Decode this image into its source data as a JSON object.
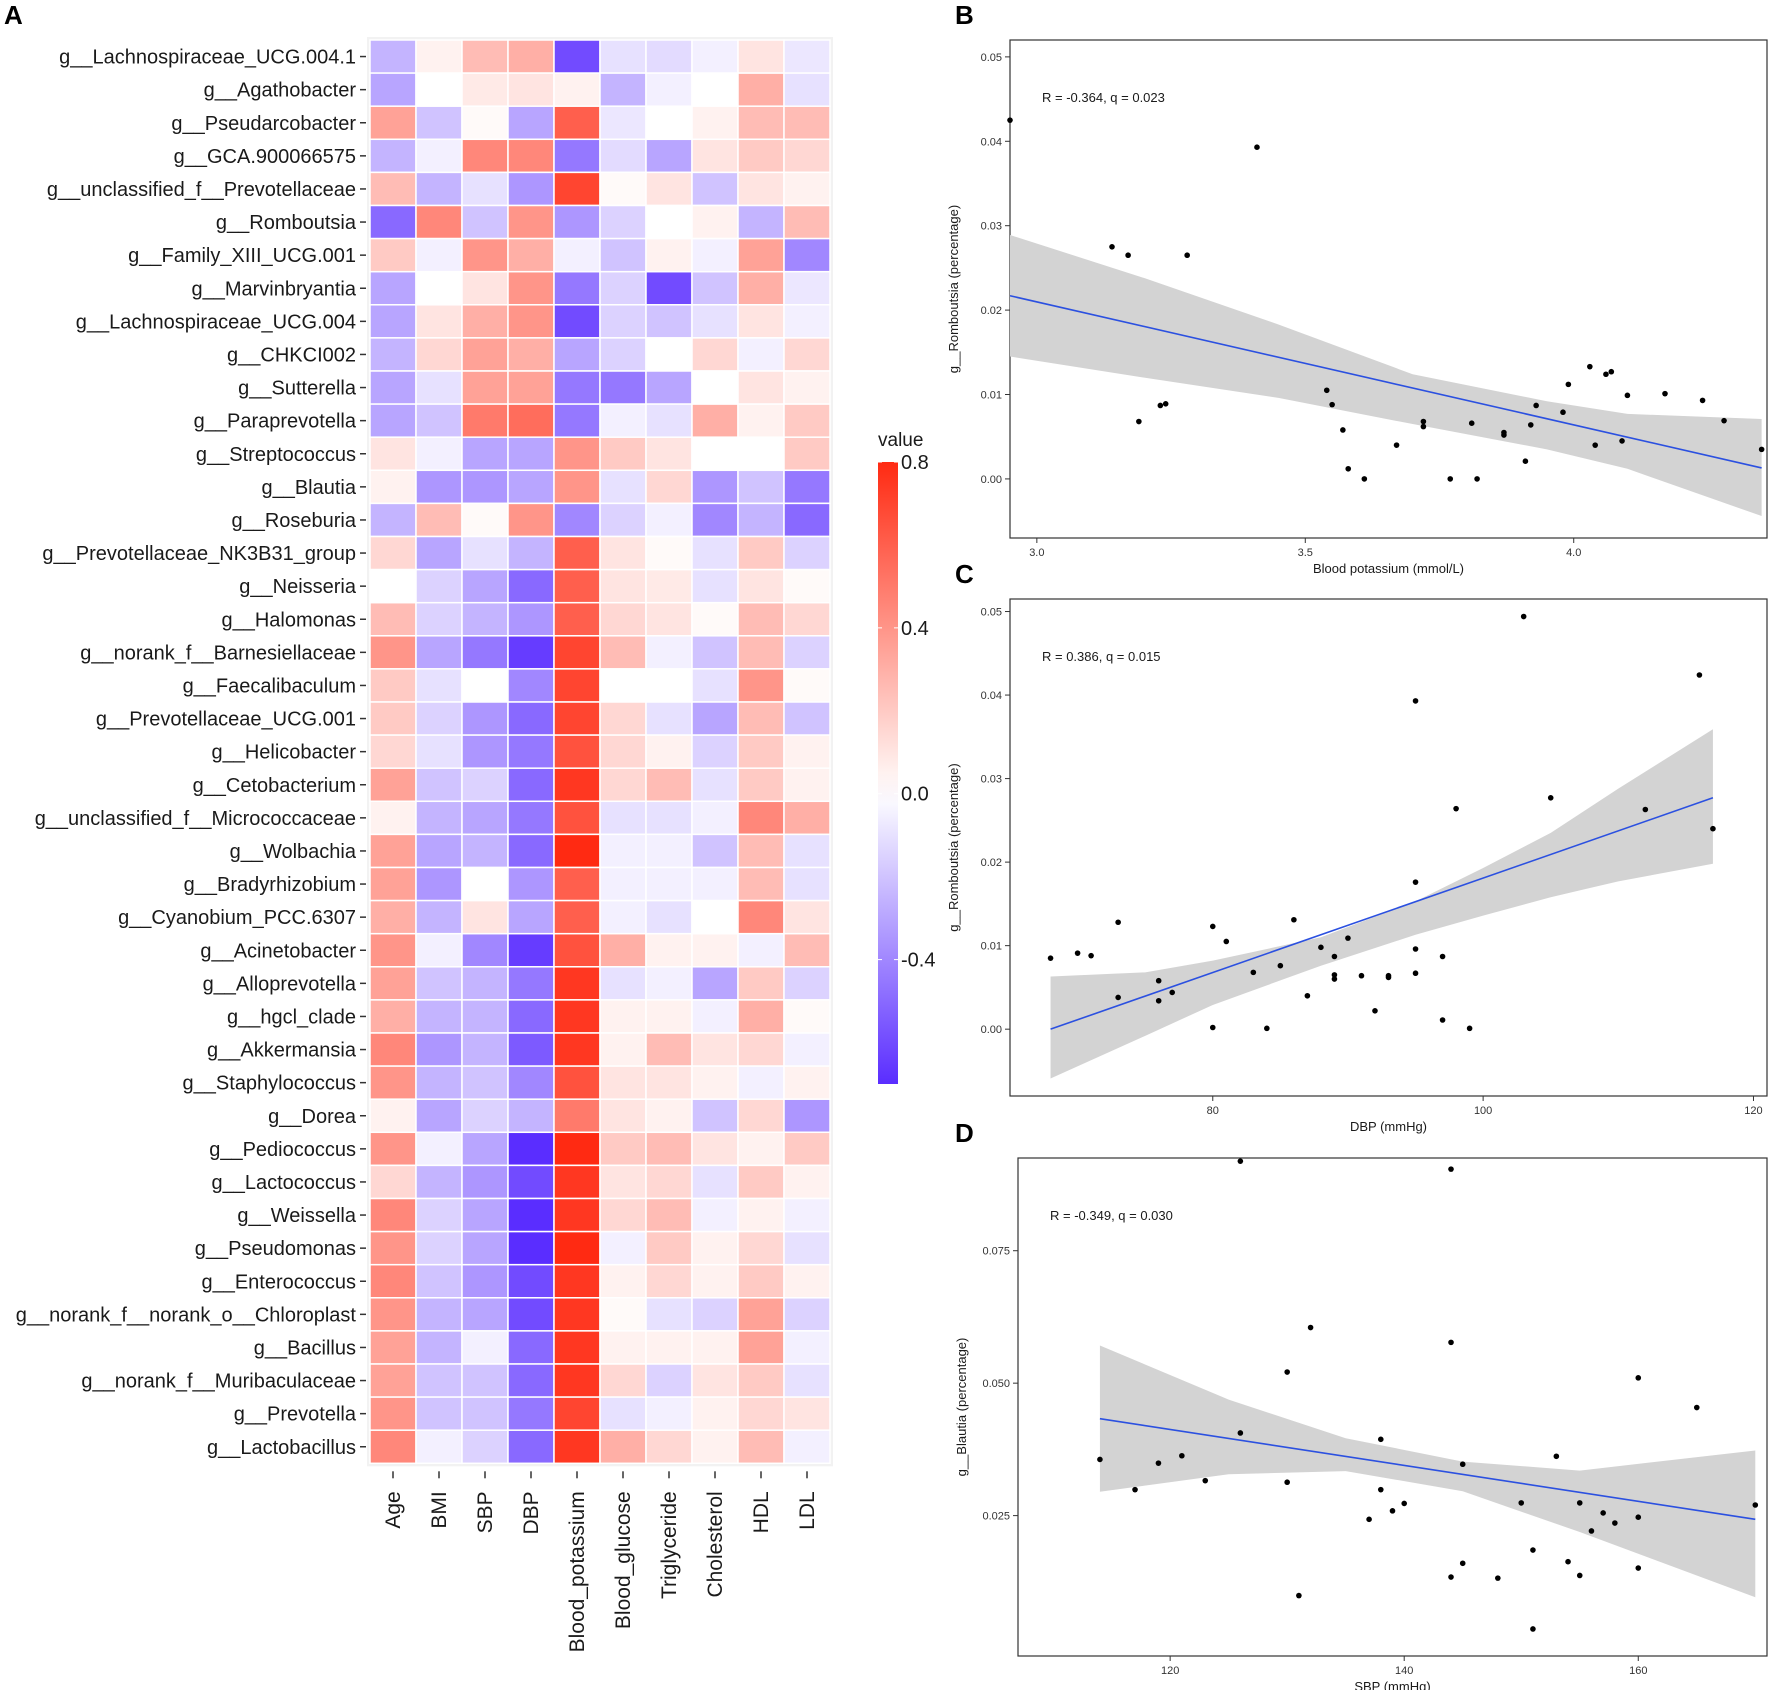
{
  "panels": {
    "A": "A",
    "B": "B",
    "C": "C",
    "D": "D"
  },
  "colors": {
    "neg": "#5a2dff",
    "pos": "#ff2a12",
    "mid": "#ffffff",
    "line": "#2b50e0",
    "band": "#d3d3d3"
  },
  "chart_data": [
    {
      "type": "heatmap",
      "panel": "A",
      "columns": [
        "Age",
        "BMI",
        "SBP",
        "DBP",
        "Blood_potassium",
        "Blood_glucose",
        "Triglyceride",
        "Cholesterol",
        "HDL",
        "LDL"
      ],
      "rows": [
        "g__Lachnospiraceae_UCG.004.1",
        "g__Agathobacter",
        "g__Pseudarcobacter",
        "g__GCA.900066575",
        "g__unclassified_f__Prevotellaceae",
        "g__Romboutsia",
        "g__Family_XIII_UCG.001",
        "g__Marvinbryantia",
        "g__Lachnospiraceae_UCG.004",
        "g__CHKCI002",
        "g__Sutterella",
        "g__Paraprevotella",
        "g__Streptococcus",
        "g__Blautia",
        "g__Roseburia",
        "g__Prevotellaceae_NK3B31_group",
        "g__Neisseria",
        "g__Halomonas",
        "g__norank_f__Barnesiellaceae",
        "g__Faecalibaculum",
        "g__Prevotellaceae_UCG.001",
        "g__Helicobacter",
        "g__Cetobacterium",
        "g__unclassified_f__Micrococcaceae",
        "g__Wolbachia",
        "g__Bradyrhizobium",
        "g__Cyanobium_PCC.6307",
        "g__Acinetobacter",
        "g__Alloprevotella",
        "g__hgcl_clade",
        "g__Akkermansia",
        "g__Staphylococcus",
        "g__Dorea",
        "g__Pediococcus",
        "g__Lactococcus",
        "g__Weissella",
        "g__Pseudomonas",
        "g__Enterococcus",
        "g__norank_f__norank_o__Chloroplast",
        "g__Bacillus",
        "g__norank_f__Muribaculaceae",
        "g__Prevotella",
        "g__Lactobacillus"
      ],
      "values": [
        [
          -0.25,
          0.05,
          0.25,
          0.3,
          -0.6,
          -0.1,
          -0.12,
          -0.05,
          0.1,
          -0.08
        ],
        [
          -0.3,
          0.0,
          0.08,
          0.1,
          0.05,
          -0.25,
          -0.05,
          0.0,
          0.3,
          -0.1
        ],
        [
          0.35,
          -0.2,
          0.02,
          -0.3,
          0.6,
          -0.08,
          0.0,
          0.05,
          0.25,
          0.25
        ],
        [
          -0.25,
          -0.05,
          0.45,
          0.45,
          -0.45,
          -0.12,
          -0.3,
          0.1,
          0.2,
          0.15
        ],
        [
          0.25,
          -0.25,
          -0.1,
          -0.35,
          0.7,
          0.02,
          0.1,
          -0.2,
          0.1,
          0.05
        ],
        [
          -0.5,
          0.45,
          -0.2,
          0.4,
          -0.35,
          -0.15,
          0.0,
          0.05,
          -0.25,
          0.25
        ],
        [
          0.2,
          -0.05,
          0.4,
          0.3,
          -0.05,
          -0.2,
          0.05,
          -0.05,
          0.35,
          -0.4
        ],
        [
          -0.3,
          0.0,
          0.1,
          0.4,
          -0.45,
          -0.15,
          -0.6,
          -0.2,
          0.3,
          -0.08
        ],
        [
          -0.3,
          0.1,
          0.3,
          0.4,
          -0.6,
          -0.15,
          -0.2,
          -0.1,
          0.1,
          -0.05
        ],
        [
          -0.25,
          0.15,
          0.35,
          0.3,
          -0.3,
          -0.15,
          0.0,
          0.15,
          -0.05,
          0.15
        ],
        [
          -0.3,
          -0.1,
          0.35,
          0.35,
          -0.45,
          -0.45,
          -0.3,
          0.0,
          0.1,
          0.05
        ],
        [
          -0.3,
          -0.2,
          0.5,
          0.55,
          -0.45,
          -0.05,
          -0.1,
          0.3,
          0.05,
          0.2
        ],
        [
          0.1,
          -0.05,
          -0.3,
          -0.3,
          0.4,
          0.2,
          0.1,
          0.0,
          0.0,
          0.2
        ],
        [
          0.05,
          -0.35,
          -0.35,
          -0.3,
          0.4,
          -0.1,
          0.15,
          -0.35,
          -0.2,
          -0.45
        ],
        [
          -0.25,
          0.25,
          0.02,
          0.4,
          -0.4,
          -0.15,
          -0.05,
          -0.4,
          -0.25,
          -0.5
        ],
        [
          0.15,
          -0.3,
          -0.1,
          -0.25,
          0.6,
          0.1,
          0.02,
          -0.1,
          0.2,
          -0.15
        ],
        [
          0.0,
          -0.15,
          -0.3,
          -0.5,
          0.6,
          0.1,
          0.08,
          -0.1,
          0.1,
          0.02
        ],
        [
          0.25,
          -0.15,
          -0.25,
          -0.35,
          0.6,
          0.15,
          0.1,
          0.02,
          0.25,
          0.15
        ],
        [
          0.4,
          -0.3,
          -0.45,
          -0.65,
          0.7,
          0.25,
          -0.05,
          -0.2,
          0.25,
          -0.15
        ],
        [
          0.2,
          -0.1,
          0.0,
          -0.4,
          0.7,
          0.0,
          0.0,
          -0.1,
          0.4,
          0.02
        ],
        [
          0.2,
          -0.15,
          -0.35,
          -0.5,
          0.7,
          0.15,
          -0.1,
          -0.3,
          0.25,
          -0.2
        ],
        [
          0.15,
          -0.1,
          -0.35,
          -0.45,
          0.65,
          0.15,
          0.05,
          -0.15,
          0.2,
          0.05
        ],
        [
          0.35,
          -0.2,
          -0.15,
          -0.5,
          0.75,
          0.15,
          0.25,
          -0.1,
          0.2,
          0.05
        ],
        [
          0.05,
          -0.25,
          -0.3,
          -0.45,
          0.65,
          -0.1,
          -0.1,
          -0.05,
          0.45,
          0.3
        ],
        [
          0.35,
          -0.3,
          -0.25,
          -0.5,
          0.8,
          -0.05,
          -0.05,
          -0.2,
          0.25,
          -0.1
        ],
        [
          0.35,
          -0.35,
          0.0,
          -0.35,
          0.6,
          -0.05,
          -0.05,
          -0.05,
          0.25,
          -0.1
        ],
        [
          0.3,
          -0.25,
          0.1,
          -0.3,
          0.6,
          -0.05,
          -0.1,
          0.0,
          0.45,
          0.1
        ],
        [
          0.4,
          -0.05,
          -0.4,
          -0.65,
          0.65,
          0.3,
          0.05,
          0.05,
          -0.05,
          0.25
        ],
        [
          0.35,
          -0.2,
          -0.25,
          -0.45,
          0.75,
          -0.1,
          -0.05,
          -0.3,
          0.2,
          -0.15
        ],
        [
          0.3,
          -0.25,
          -0.25,
          -0.5,
          0.75,
          0.05,
          0.05,
          -0.05,
          0.3,
          0.02
        ],
        [
          0.45,
          -0.35,
          -0.25,
          -0.55,
          0.75,
          0.05,
          0.25,
          0.1,
          0.15,
          -0.05
        ],
        [
          0.4,
          -0.25,
          -0.2,
          -0.4,
          0.65,
          0.1,
          0.1,
          0.05,
          -0.05,
          0.05
        ],
        [
          0.05,
          -0.3,
          -0.15,
          -0.25,
          0.5,
          0.1,
          0.05,
          -0.2,
          0.15,
          -0.35
        ],
        [
          0.4,
          -0.05,
          -0.3,
          -0.8,
          0.8,
          0.2,
          0.25,
          0.1,
          0.05,
          0.2
        ],
        [
          0.15,
          -0.25,
          -0.35,
          -0.6,
          0.75,
          0.1,
          0.15,
          -0.1,
          0.2,
          0.05
        ],
        [
          0.45,
          -0.15,
          -0.3,
          -0.7,
          0.75,
          0.15,
          0.25,
          -0.05,
          0.05,
          -0.05
        ],
        [
          0.4,
          -0.15,
          -0.3,
          -0.7,
          0.85,
          -0.05,
          0.2,
          0.05,
          0.15,
          -0.1
        ],
        [
          0.45,
          -0.2,
          -0.35,
          -0.6,
          0.75,
          0.05,
          0.15,
          0.05,
          0.2,
          0.05
        ],
        [
          0.4,
          -0.25,
          -0.3,
          -0.6,
          0.75,
          0.02,
          -0.1,
          -0.15,
          0.35,
          -0.15
        ],
        [
          0.35,
          -0.25,
          -0.05,
          -0.5,
          0.75,
          0.05,
          0.05,
          0.05,
          0.35,
          -0.05
        ],
        [
          0.35,
          -0.2,
          -0.2,
          -0.5,
          0.75,
          0.15,
          -0.15,
          0.1,
          0.2,
          -0.1
        ],
        [
          0.4,
          -0.2,
          -0.2,
          -0.45,
          0.7,
          -0.1,
          -0.05,
          0.05,
          0.15,
          0.1
        ],
        [
          0.45,
          -0.05,
          -0.15,
          -0.5,
          0.75,
          0.3,
          0.15,
          0.05,
          0.25,
          -0.05
        ]
      ],
      "legend": {
        "title": "value",
        "range": [
          -0.7,
          0.8
        ],
        "ticks": [
          0.8,
          0.4,
          0.0,
          -0.4
        ],
        "tick_labels": [
          "0.8",
          "0.4",
          "0.0",
          "-0.4"
        ]
      }
    },
    {
      "type": "scatter",
      "panel": "B",
      "annotation": "R = -0.364, q = 0.023",
      "xlabel": "Blood potassium (mmol/L)",
      "ylabel": "g__Romboutsia (percentage)",
      "xlim": [
        2.95,
        4.36
      ],
      "ylim": [
        -0.007,
        0.052
      ],
      "xticks": [
        3.0,
        3.5,
        4.0
      ],
      "xtick_labels": [
        "3.0",
        "3.5",
        "4.0"
      ],
      "yticks": [
        0.0,
        0.01,
        0.02,
        0.03,
        0.04,
        0.05
      ],
      "ytick_labels": [
        "0.00",
        "0.01",
        "0.02",
        "0.03",
        "0.04",
        "0.05"
      ],
      "x": [
        2.95,
        3.14,
        3.17,
        3.19,
        3.23,
        3.24,
        3.28,
        3.41,
        3.54,
        3.55,
        3.57,
        3.58,
        3.61,
        3.67,
        3.72,
        3.72,
        3.77,
        3.81,
        3.82,
        3.87,
        3.87,
        3.91,
        3.92,
        3.93,
        3.98,
        3.99,
        4.03,
        4.04,
        4.06,
        4.07,
        4.09,
        4.1,
        4.17,
        4.24,
        4.28,
        4.35
      ],
      "y": [
        0.0425,
        0.0275,
        0.0265,
        0.0068,
        0.0087,
        0.0089,
        0.0265,
        0.0393,
        0.0105,
        0.0088,
        0.0058,
        0.0012,
        0.0,
        0.004,
        0.0068,
        0.0062,
        0.0,
        0.0066,
        0.0,
        0.0055,
        0.0052,
        0.0021,
        0.0064,
        0.0087,
        0.0079,
        0.0112,
        0.0133,
        0.004,
        0.0124,
        0.0127,
        0.0045,
        0.0099,
        0.0101,
        0.0093,
        0.0069,
        0.0035
      ],
      "fit": {
        "x": [
          2.95,
          4.35
        ],
        "y": [
          0.0217,
          0.0013
        ]
      },
      "band": {
        "x": [
          2.95,
          3.2,
          3.45,
          3.7,
          3.95,
          4.1,
          4.35
        ],
        "lower": [
          0.0145,
          0.012,
          0.0096,
          0.0065,
          0.0035,
          0.0012,
          -0.0044
        ],
        "upper": [
          0.0289,
          0.0238,
          0.0183,
          0.0124,
          0.0092,
          0.0077,
          0.0071
        ]
      }
    },
    {
      "type": "scatter",
      "panel": "C",
      "annotation": "R = 0.386, q = 0.015",
      "xlabel": "DBP (mmHg)",
      "ylabel": "g__Romboutsia (percentage)",
      "xlim": [
        65,
        121
      ],
      "ylim": [
        -0.008,
        0.0515
      ],
      "xticks": [
        80,
        100,
        120
      ],
      "xtick_labels": [
        "80",
        "100",
        "120"
      ],
      "yticks": [
        0.0,
        0.01,
        0.02,
        0.03,
        0.04,
        0.05
      ],
      "ytick_labels": [
        "0.00",
        "0.01",
        "0.02",
        "0.03",
        "0.04",
        "0.05"
      ],
      "x": [
        68,
        70,
        71,
        73,
        73,
        76,
        76,
        77,
        80,
        80,
        81,
        83,
        84,
        85,
        86,
        87,
        88,
        89,
        89,
        89,
        90,
        91,
        92,
        93,
        93,
        95,
        95,
        95,
        95,
        97,
        97,
        98,
        99,
        103,
        105,
        112,
        116,
        117
      ],
      "y": [
        0.0085,
        0.0091,
        0.0088,
        0.0128,
        0.0038,
        0.0058,
        0.0034,
        0.0044,
        0.0123,
        0.0002,
        0.0105,
        0.0068,
        0.0001,
        0.0076,
        0.0131,
        0.004,
        0.0098,
        0.0065,
        0.006,
        0.0087,
        0.0109,
        0.0064,
        0.0022,
        0.0064,
        0.0062,
        0.0393,
        0.0176,
        0.0096,
        0.0067,
        0.0087,
        0.0011,
        0.0264,
        0.0001,
        0.0494,
        0.0277,
        0.0263,
        0.0424,
        0.024
      ],
      "fit": {
        "x": [
          68,
          117
        ],
        "y": [
          0.0,
          0.0277
        ]
      },
      "band": {
        "x": [
          68,
          75,
          80,
          88,
          95,
          100,
          105,
          110,
          117
        ],
        "lower": [
          -0.0059,
          -0.0008,
          0.0029,
          0.0076,
          0.0113,
          0.0136,
          0.0158,
          0.0177,
          0.0198
        ],
        "upper": [
          0.0063,
          0.0068,
          0.0082,
          0.011,
          0.0153,
          0.0193,
          0.0235,
          0.0288,
          0.0359
        ]
      }
    },
    {
      "type": "scatter",
      "panel": "D",
      "annotation": "R = -0.349, q = 0.030",
      "xlabel": "SBP (mmHg)",
      "ylabel": "g__Blautia (percentage)",
      "xlim": [
        107,
        171
      ],
      "ylim": [
        -0.0015,
        0.0925
      ],
      "xticks": [
        120,
        140,
        160
      ],
      "xtick_labels": [
        "120",
        "140",
        "160"
      ],
      "yticks": [
        0.025,
        0.05,
        0.075
      ],
      "ytick_labels": [
        "0.025",
        "0.050",
        "0.075"
      ],
      "x": [
        114,
        117,
        119,
        121,
        123,
        126,
        130,
        130,
        131,
        132,
        137,
        138,
        138,
        139,
        140,
        144,
        144,
        145,
        145,
        148,
        150,
        151,
        151,
        153,
        154,
        155,
        155,
        156,
        157,
        158,
        160,
        160,
        160,
        165,
        170
      ],
      "y": [
        0.0356,
        0.0299,
        0.0349,
        0.0363,
        0.0316,
        0.0406,
        0.0313,
        0.0521,
        0.0099,
        0.0605,
        0.0243,
        0.0299,
        0.0394,
        0.0259,
        0.0273,
        0.0577,
        0.0134,
        0.0347,
        0.016,
        0.0132,
        0.0274,
        0.0036,
        0.0185,
        0.0362,
        0.0163,
        0.0274,
        0.0137,
        0.0221,
        0.0255,
        0.0236,
        0.051,
        0.0151,
        0.0247,
        0.0454,
        0.027
      ],
      "extra_points": {
        "x": [
          126,
          144
        ],
        "y": [
          0.0919,
          0.0904
        ]
      },
      "fit": {
        "x": [
          114,
          170
        ],
        "y": [
          0.0433,
          0.0243
        ]
      },
      "band": {
        "x": [
          114,
          125,
          135,
          145,
          155,
          170
        ],
        "lower": [
          0.0295,
          0.0328,
          0.0334,
          0.0296,
          0.0219,
          0.0096
        ],
        "upper": [
          0.0571,
          0.0469,
          0.0396,
          0.0352,
          0.0335,
          0.0373
        ]
      }
    }
  ]
}
